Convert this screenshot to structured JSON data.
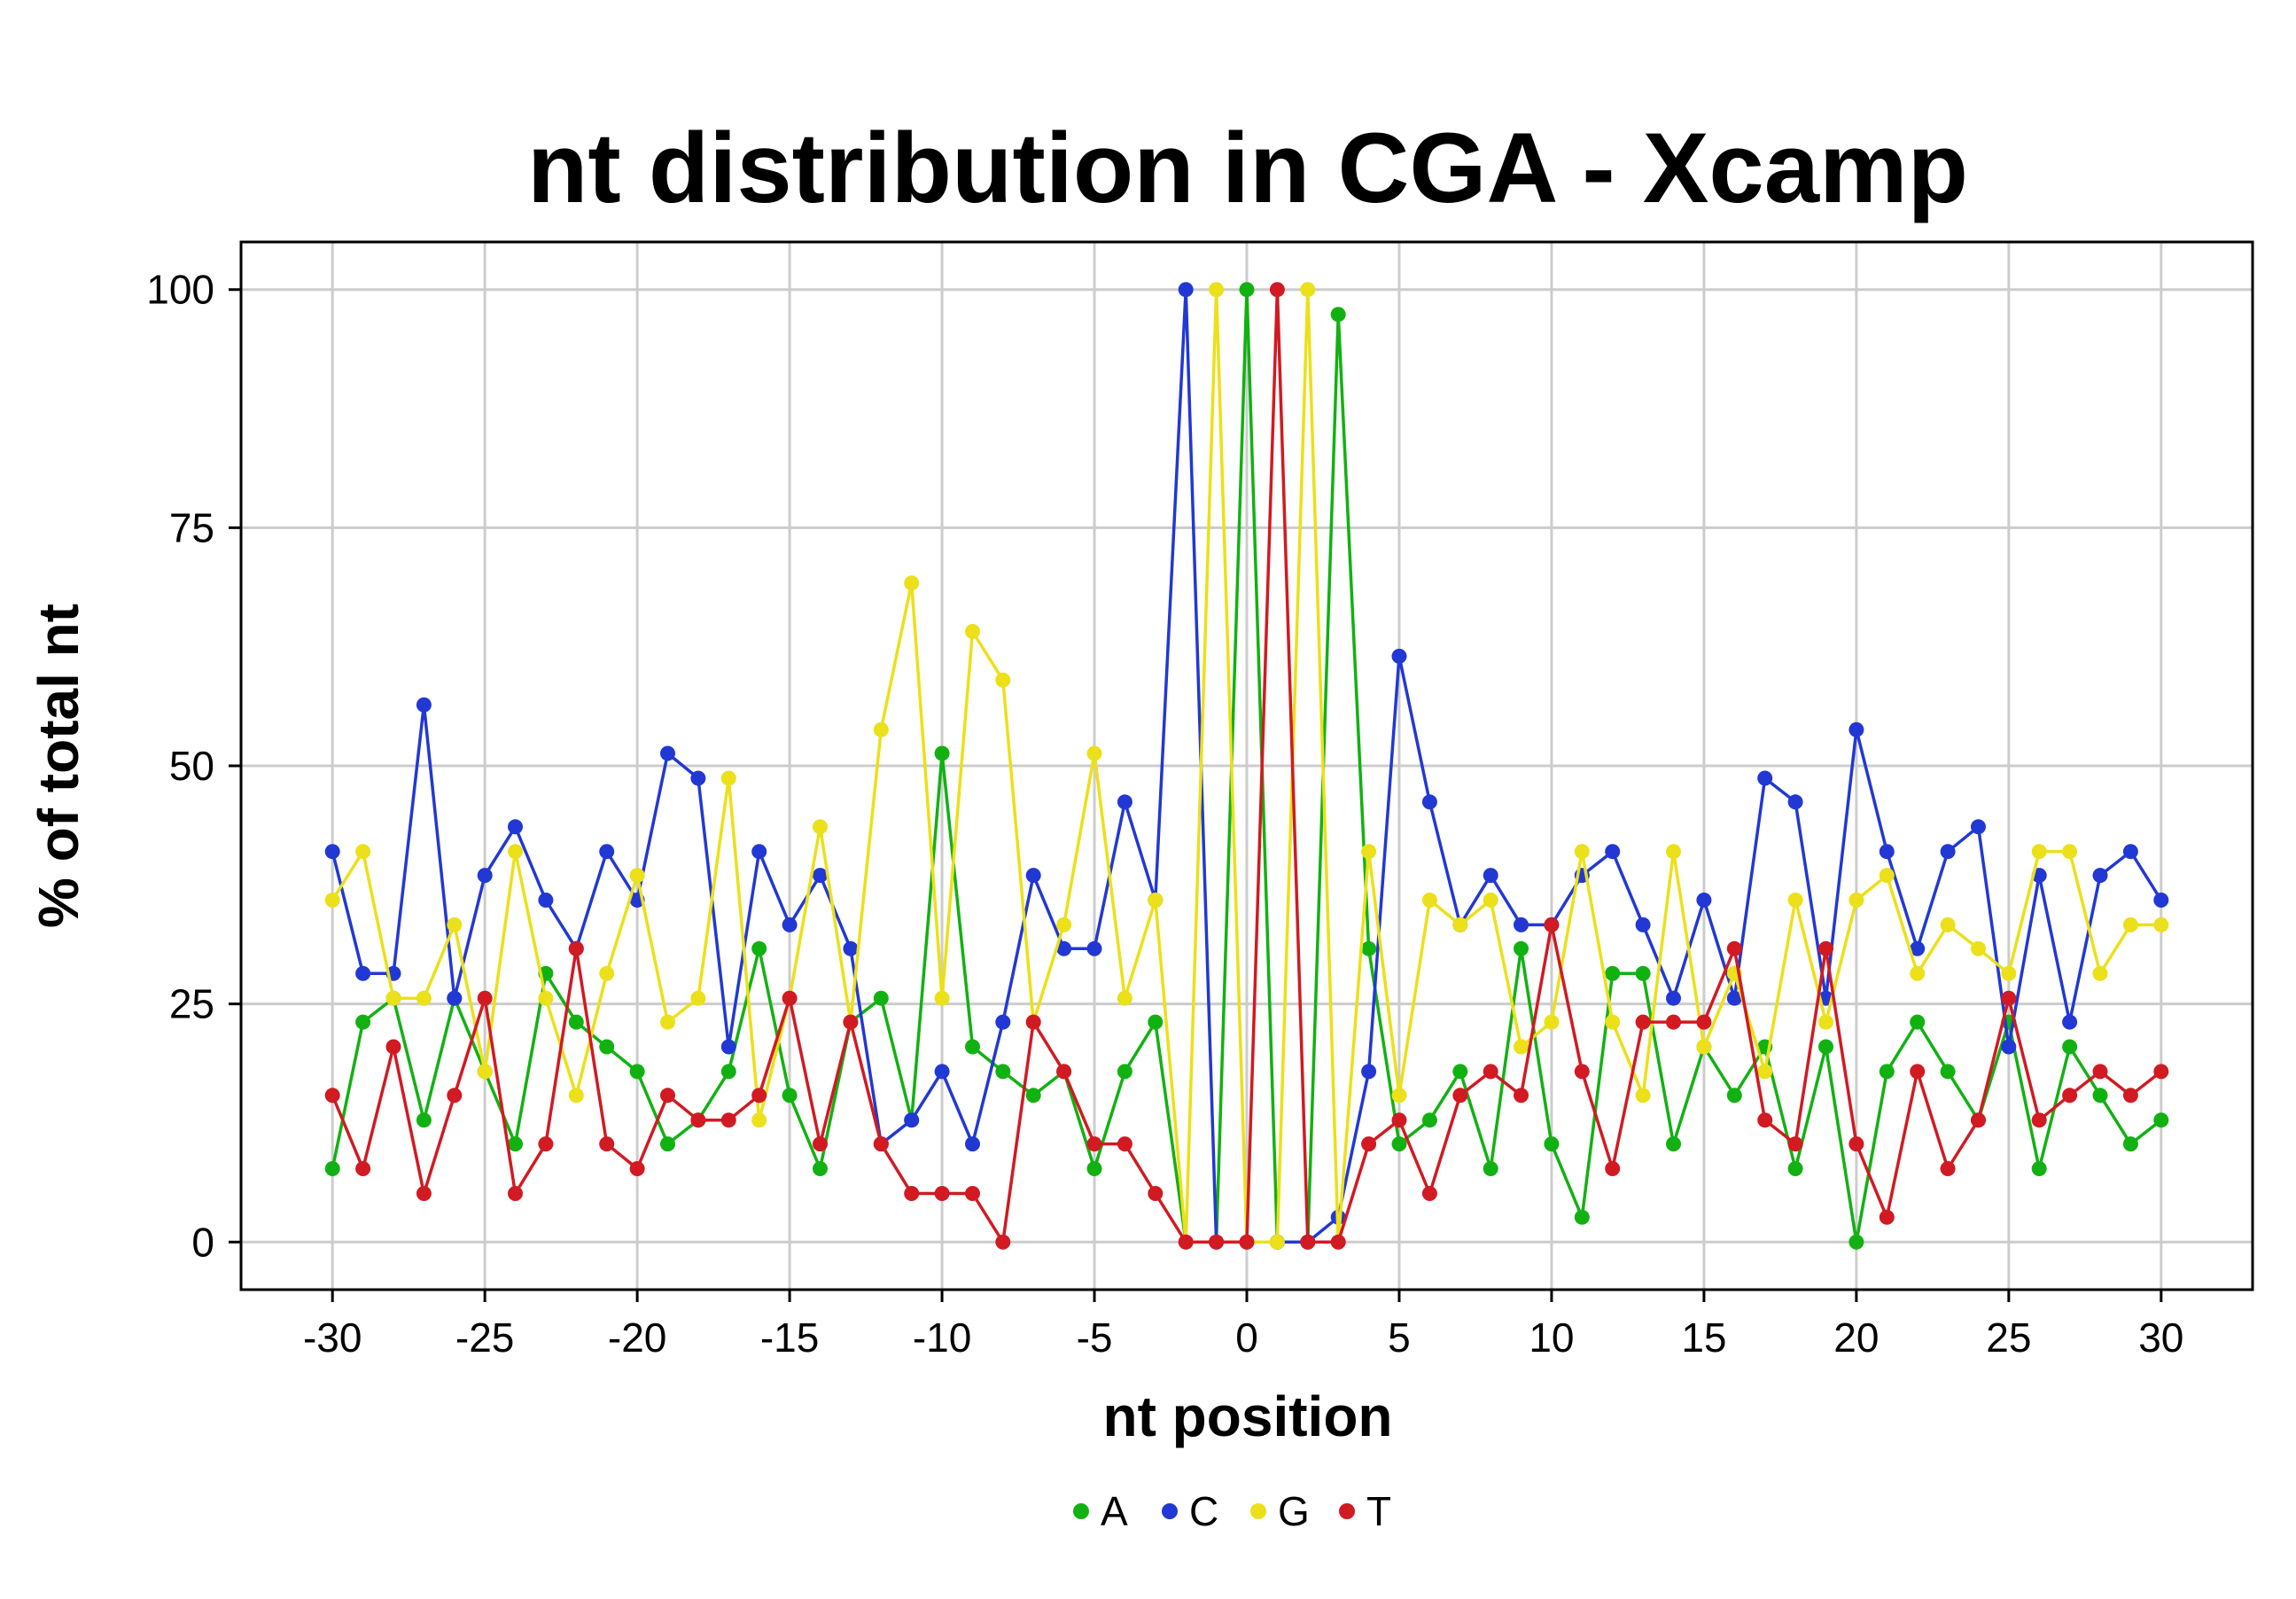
{
  "chart_data": {
    "type": "line",
    "title": "nt distribution in CGA - Xcamp",
    "xlabel": "nt position",
    "ylabel": "% of total nt",
    "xlim": [
      -33,
      33
    ],
    "ylim": [
      -5,
      105
    ],
    "xticks": [
      "-30",
      "-25",
      "-20",
      "-15",
      "-10",
      "-5",
      "0",
      "5",
      "10",
      "15",
      "20",
      "25",
      "30"
    ],
    "yticks": [
      "0",
      "25",
      "50",
      "75",
      "100"
    ],
    "grid": true,
    "legend_position": "bottom",
    "x": [
      -30,
      -29,
      -28,
      -27,
      -26,
      -25,
      -24,
      -23,
      -22,
      -21,
      -20,
      -19,
      -18,
      -17,
      -16,
      -15,
      -14,
      -13,
      -12,
      -11,
      -10,
      -9,
      -8,
      -7,
      -6,
      -5,
      -4,
      -3,
      -2,
      -1,
      0,
      1,
      2,
      3,
      4,
      5,
      6,
      7,
      8,
      9,
      10,
      11,
      12,
      13,
      14,
      15,
      16,
      17,
      18,
      19,
      20,
      21,
      22,
      23,
      24,
      25,
      26,
      27,
      28,
      29,
      30
    ],
    "series": [
      {
        "name": "A",
        "color": "#12b112",
        "values": [
          7.7,
          23.1,
          25.6,
          12.8,
          25.6,
          17.9,
          10.3,
          28.2,
          23.1,
          20.5,
          17.9,
          10.3,
          12.8,
          17.9,
          30.8,
          15.4,
          7.7,
          23.1,
          25.6,
          12.8,
          51.3,
          20.5,
          17.9,
          15.4,
          17.9,
          7.7,
          17.9,
          23.1,
          0,
          0,
          100,
          0,
          0,
          97.4,
          30.8,
          10.3,
          12.8,
          17.9,
          7.7,
          30.8,
          10.3,
          2.6,
          28.2,
          28.2,
          10.3,
          20.5,
          15.4,
          20.5,
          7.7,
          20.5,
          0,
          17.9,
          23.1,
          17.9,
          12.8,
          23.1,
          7.7,
          20.5,
          15.4,
          10.3,
          12.8
        ]
      },
      {
        "name": "C",
        "color": "#2238d4",
        "values": [
          41.0,
          28.2,
          28.2,
          56.4,
          25.6,
          38.5,
          43.6,
          35.9,
          30.8,
          41.0,
          35.9,
          51.3,
          48.7,
          20.5,
          41.0,
          33.3,
          38.5,
          30.8,
          10.3,
          12.8,
          17.9,
          10.3,
          23.1,
          38.5,
          30.8,
          30.8,
          46.2,
          35.9,
          100,
          0,
          0,
          0,
          0,
          2.6,
          17.9,
          61.5,
          46.2,
          33.3,
          38.5,
          33.3,
          33.3,
          38.5,
          41.0,
          33.3,
          25.6,
          35.9,
          25.6,
          48.7,
          46.2,
          25.6,
          53.8,
          41.0,
          30.8,
          41.0,
          43.6,
          20.5,
          38.5,
          23.1,
          38.5,
          41.0,
          35.9
        ]
      },
      {
        "name": "G",
        "color": "#ebe01a",
        "values": [
          35.9,
          41.0,
          25.6,
          25.6,
          33.3,
          17.9,
          41.0,
          25.6,
          15.4,
          28.2,
          38.5,
          23.1,
          25.6,
          48.7,
          12.8,
          25.6,
          43.6,
          23.1,
          53.8,
          69.2,
          25.6,
          64.1,
          59.0,
          23.1,
          33.3,
          51.3,
          25.6,
          35.9,
          0,
          100,
          0,
          0,
          100,
          0,
          41.0,
          15.4,
          35.9,
          33.3,
          35.9,
          20.5,
          23.1,
          41.0,
          23.1,
          15.4,
          41.0,
          20.5,
          28.2,
          17.9,
          35.9,
          23.1,
          35.9,
          38.5,
          28.2,
          33.3,
          30.8,
          28.2,
          41.0,
          41.0,
          28.2,
          33.3,
          33.3
        ]
      },
      {
        "name": "T",
        "color": "#d11a22",
        "values": [
          15.4,
          7.7,
          20.5,
          5.1,
          15.4,
          25.6,
          5.1,
          10.3,
          30.8,
          10.3,
          7.7,
          15.4,
          12.8,
          12.8,
          15.4,
          25.6,
          10.3,
          23.1,
          10.3,
          5.1,
          5.1,
          5.1,
          0,
          23.1,
          17.9,
          10.3,
          10.3,
          5.1,
          0,
          0,
          0,
          100,
          0,
          0,
          10.3,
          12.8,
          5.1,
          15.4,
          17.9,
          15.4,
          33.3,
          17.9,
          7.7,
          23.1,
          23.1,
          23.1,
          30.8,
          12.8,
          10.3,
          30.8,
          10.3,
          2.6,
          17.9,
          7.7,
          12.8,
          25.6,
          12.8,
          15.4,
          17.9,
          15.4,
          17.9
        ]
      }
    ]
  }
}
